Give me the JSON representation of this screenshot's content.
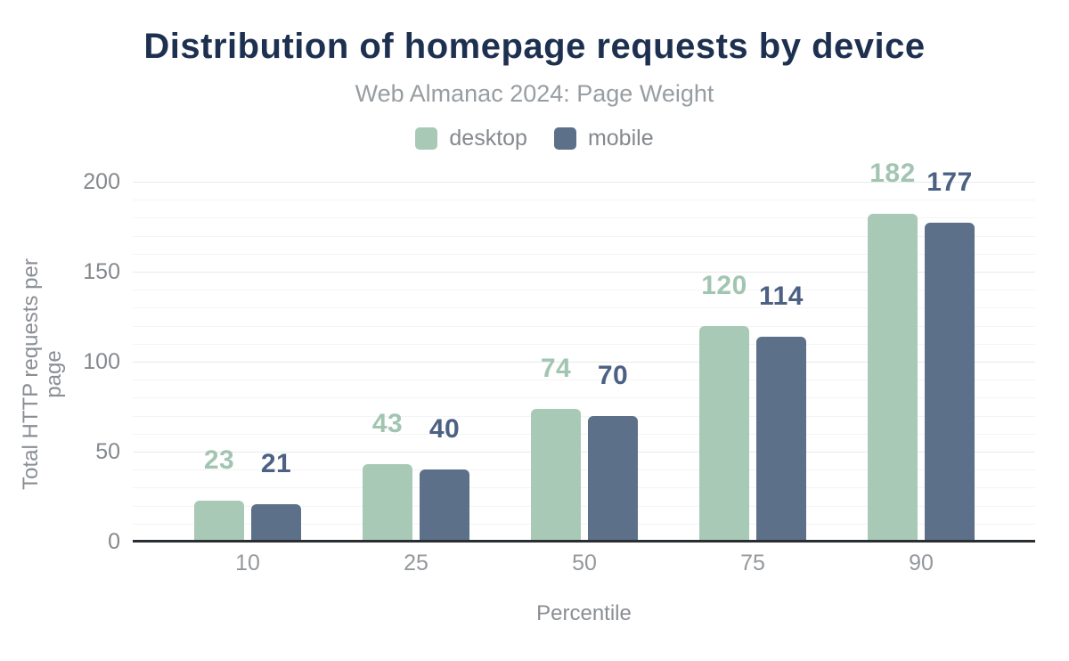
{
  "chart_data": {
    "type": "bar",
    "title": "Distribution of homepage requests by device",
    "subtitle": "Web Almanac 2024: Page Weight",
    "xlabel": "Percentile",
    "ylabel": "Total HTTP requests per page",
    "categories": [
      "10",
      "25",
      "50",
      "75",
      "90"
    ],
    "series": [
      {
        "name": "desktop",
        "color": "#a9c9b7",
        "label_color": "#a2c5b2",
        "values": [
          23,
          43,
          74,
          120,
          182
        ]
      },
      {
        "name": "mobile",
        "color": "#5d7089",
        "label_color": "#4c6183",
        "values": [
          21,
          40,
          70,
          114,
          177
        ]
      }
    ],
    "ylim": [
      0,
      200
    ],
    "y_ticks": [
      0,
      50,
      100,
      150,
      200
    ],
    "minor_grid_step": 10,
    "grid": true,
    "legend_position": "top"
  },
  "styles": {
    "background": "#ffffff",
    "title_color": "#1d3050",
    "subtitle_color": "#989da1",
    "axis_text_color": "#8a8e93",
    "y_tick_color": "#85898e",
    "x_tick_color": "#94989c",
    "axis_line_color": "#2a2d32",
    "grid_major_color": "#e7e9eb",
    "grid_minor_color": "#f3f4f5",
    "legend_text_color": "#85898e"
  }
}
